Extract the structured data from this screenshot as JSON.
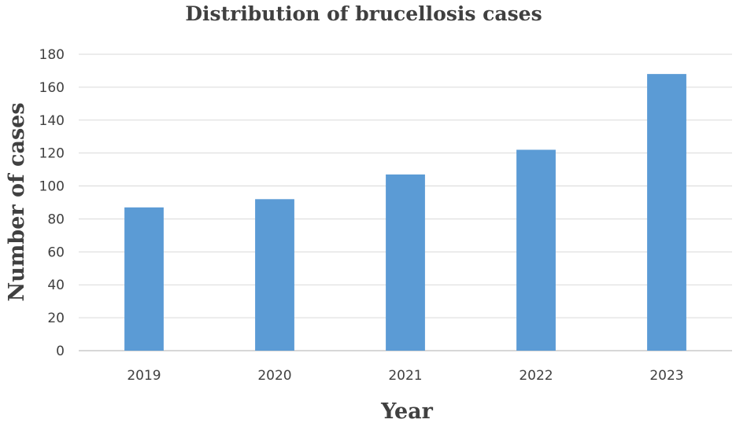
{
  "chart_data": {
    "type": "bar",
    "title": "Distribution of brucellosis cases",
    "xlabel": "Year",
    "ylabel": "Number of cases",
    "categories": [
      "2019",
      "2020",
      "2021",
      "2022",
      "2023"
    ],
    "values": [
      87,
      92,
      107,
      122,
      168
    ],
    "ylim": [
      0,
      180
    ],
    "yticks": [
      0,
      20,
      40,
      60,
      80,
      100,
      120,
      140,
      160,
      180
    ],
    "grid": true,
    "legend": "none",
    "bar_color": "#5b9bd5"
  }
}
